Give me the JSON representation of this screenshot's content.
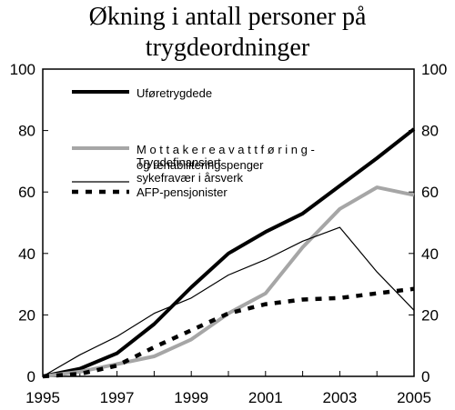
{
  "chart_data": {
    "type": "line",
    "title_lines": [
      "Økning i antall personer på",
      "trygdeordninger"
    ],
    "x": [
      1995,
      1996,
      1997,
      1998,
      1999,
      2000,
      2001,
      2002,
      2003,
      2004,
      2005
    ],
    "x_ticks": [
      "1995",
      "1997",
      "1999",
      "2001",
      "2003",
      "2005"
    ],
    "y_ticks": [
      "0",
      "20",
      "40",
      "60",
      "80",
      "100"
    ],
    "ylim": [
      0,
      100
    ],
    "xlim": [
      1995,
      2005
    ],
    "grid": false,
    "legend_position": "top-left",
    "series": [
      {
        "key": "ufore",
        "name_lines": [
          "Uføretrygdede"
        ],
        "values": [
          0,
          2.5,
          7.5,
          17,
          29,
          40,
          47,
          53,
          62,
          71,
          80.5
        ],
        "color": "#000000",
        "style": "thick-solid"
      },
      {
        "key": "attforing",
        "name_lines": [
          "M o t t a k e r e  a v  a t t f ø r i n g -",
          "og rehabiliteringspenger"
        ],
        "values": [
          0,
          1.5,
          4,
          6.5,
          12,
          20.5,
          27,
          42,
          54.5,
          61.5,
          59
        ],
        "color": "#a6a6a6",
        "style": "thick-solid"
      },
      {
        "key": "sykefravar",
        "name_lines": [
          "Trygdefinansiert",
          "sykefravær i årsverk"
        ],
        "values": [
          0,
          7,
          13,
          20.5,
          25.5,
          33,
          38,
          44,
          48.5,
          34,
          21.5
        ],
        "color": "#000000",
        "style": "thin-solid"
      },
      {
        "key": "afp",
        "name_lines": [
          "AFP-pensjonister"
        ],
        "values": [
          0,
          0.8,
          3.5,
          9.5,
          15,
          20.5,
          23.5,
          25,
          25.5,
          27,
          28.5
        ],
        "color": "#000000",
        "style": "thick-dashed"
      }
    ]
  }
}
